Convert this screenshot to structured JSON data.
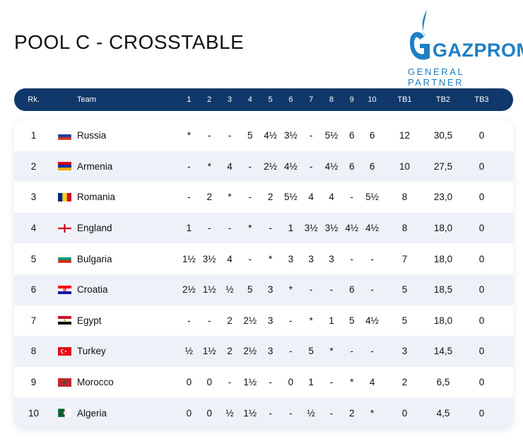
{
  "title": "POOL C - CROSSTABLE",
  "logo": {
    "word": "GAZPROM",
    "subtitle": "GENERAL PARTNER"
  },
  "colors": {
    "header_bg": "#10386a",
    "stripe": "#eef2f8",
    "brand": "#1d7fc4"
  },
  "header": {
    "rank": "Rk.",
    "team": "Team",
    "rounds": [
      "1",
      "2",
      "3",
      "4",
      "5",
      "6",
      "7",
      "8",
      "9",
      "10"
    ],
    "tb1": "TB1",
    "tb2": "TB2",
    "tb3": "TB3"
  },
  "rows": [
    {
      "rank": "1",
      "flag": "russia-flag-icon",
      "team": "Russia",
      "results": [
        "*",
        "-",
        "-",
        "5",
        "4½",
        "3½",
        "-",
        "5½",
        "6",
        "6"
      ],
      "tb1": "12",
      "tb2": "30,5",
      "tb3": "0"
    },
    {
      "rank": "2",
      "flag": "armenia-flag-icon",
      "team": "Armenia",
      "results": [
        "-",
        "*",
        "4",
        "-",
        "2½",
        "4½",
        "-",
        "4½",
        "6",
        "6"
      ],
      "tb1": "10",
      "tb2": "27,5",
      "tb3": "0"
    },
    {
      "rank": "3",
      "flag": "romania-flag-icon",
      "team": "Romania",
      "results": [
        "-",
        "2",
        "*",
        "-",
        "2",
        "5½",
        "4",
        "4",
        "-",
        "5½"
      ],
      "tb1": "8",
      "tb2": "23,0",
      "tb3": "0"
    },
    {
      "rank": "4",
      "flag": "england-flag-icon",
      "team": "England",
      "results": [
        "1",
        "-",
        "-",
        "*",
        "-",
        "1",
        "3½",
        "3½",
        "4½",
        "4½"
      ],
      "tb1": "8",
      "tb2": "18,0",
      "tb3": "0"
    },
    {
      "rank": "5",
      "flag": "bulgaria-flag-icon",
      "team": "Bulgaria",
      "results": [
        "1½",
        "3½",
        "4",
        "-",
        "*",
        "3",
        "3",
        "3",
        "-",
        "-"
      ],
      "tb1": "7",
      "tb2": "18,0",
      "tb3": "0"
    },
    {
      "rank": "6",
      "flag": "croatia-flag-icon",
      "team": "Croatia",
      "results": [
        "2½",
        "1½",
        "½",
        "5",
        "3",
        "*",
        "-",
        "-",
        "6",
        "-"
      ],
      "tb1": "5",
      "tb2": "18,5",
      "tb3": "0"
    },
    {
      "rank": "7",
      "flag": "egypt-flag-icon",
      "team": "Egypt",
      "results": [
        "-",
        "-",
        "2",
        "2½",
        "3",
        "-",
        "*",
        "1",
        "5",
        "4½"
      ],
      "tb1": "5",
      "tb2": "18,0",
      "tb3": "0"
    },
    {
      "rank": "8",
      "flag": "turkey-flag-icon",
      "team": "Turkey",
      "results": [
        "½",
        "1½",
        "2",
        "2½",
        "3",
        "-",
        "5",
        "*",
        "-",
        "-"
      ],
      "tb1": "3",
      "tb2": "14,5",
      "tb3": "0"
    },
    {
      "rank": "9",
      "flag": "morocco-flag-icon",
      "team": "Morocco",
      "results": [
        "0",
        "0",
        "-",
        "1½",
        "-",
        "0",
        "1",
        "-",
        "*",
        "4"
      ],
      "tb1": "2",
      "tb2": "6,5",
      "tb3": "0"
    },
    {
      "rank": "10",
      "flag": "algeria-flag-icon",
      "team": "Algeria",
      "results": [
        "0",
        "0",
        "½",
        "1½",
        "-",
        "-",
        "½",
        "-",
        "2",
        "*"
      ],
      "tb1": "0",
      "tb2": "4,5",
      "tb3": "0"
    }
  ]
}
